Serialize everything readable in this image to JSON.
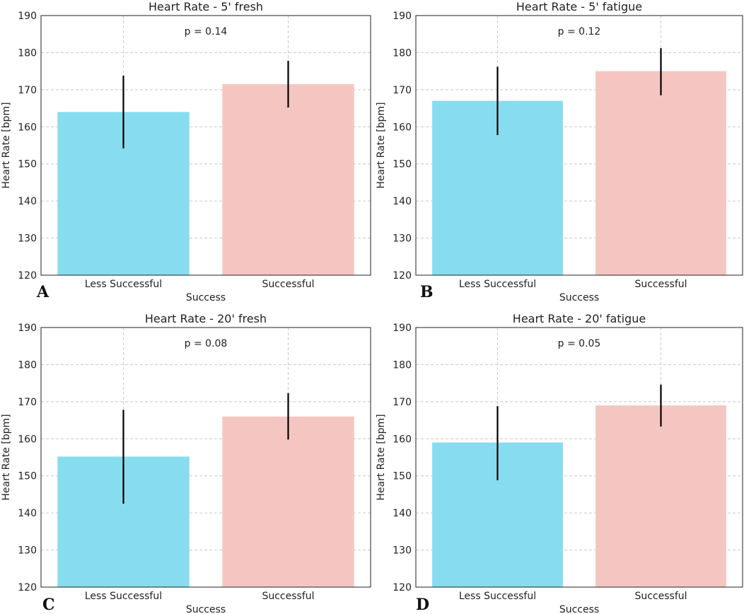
{
  "colors": {
    "less_successful": "#87DCEF",
    "successful": "#F5C6C1"
  },
  "chart_data": [
    {
      "type": "bar",
      "panel_label": "A",
      "title": "Heart Rate - 5' fresh",
      "annotation": "p = 0.14",
      "categories": [
        "Less Successful",
        "Successful"
      ],
      "values": [
        164,
        171.5
      ],
      "error_low": [
        154.2,
        165.2
      ],
      "error_high": [
        173.8,
        177.8
      ],
      "xlabel": "Success",
      "ylabel": "Heart Rate [bpm]",
      "ylim": [
        120,
        190
      ],
      "yticks": [
        120,
        130,
        140,
        150,
        160,
        170,
        180,
        190
      ],
      "grid": true
    },
    {
      "type": "bar",
      "panel_label": "B",
      "title": "Heart Rate - 5' fatigue",
      "annotation": "p = 0.12",
      "categories": [
        "Less Successful",
        "Successful"
      ],
      "values": [
        167,
        175
      ],
      "error_low": [
        157.8,
        168.5
      ],
      "error_high": [
        176.2,
        181.2
      ],
      "xlabel": "Success",
      "ylabel": "Heart Rate [bpm]",
      "ylim": [
        120,
        190
      ],
      "yticks": [
        120,
        130,
        140,
        150,
        160,
        170,
        180,
        190
      ],
      "grid": true
    },
    {
      "type": "bar",
      "panel_label": "C",
      "title": "Heart Rate - 20' fresh",
      "annotation": "p = 0.08",
      "categories": [
        "Less Successful",
        "Successful"
      ],
      "values": [
        155.2,
        166
      ],
      "error_low": [
        142.5,
        159.8
      ],
      "error_high": [
        167.8,
        172.3
      ],
      "xlabel": "Success",
      "ylabel": "Heart Rate [bpm]",
      "ylim": [
        120,
        190
      ],
      "yticks": [
        120,
        130,
        140,
        150,
        160,
        170,
        180,
        190
      ],
      "grid": true
    },
    {
      "type": "bar",
      "panel_label": "D",
      "title": "Heart Rate - 20' fatigue",
      "annotation": "p = 0.05",
      "categories": [
        "Less Successful",
        "Successful"
      ],
      "values": [
        159,
        169
      ],
      "error_low": [
        148.8,
        163.3
      ],
      "error_high": [
        168.8,
        174.6
      ],
      "xlabel": "Success",
      "ylabel": "Heart Rate [bpm]",
      "ylim": [
        120,
        190
      ],
      "yticks": [
        120,
        130,
        140,
        150,
        160,
        170,
        180,
        190
      ],
      "grid": true
    }
  ]
}
